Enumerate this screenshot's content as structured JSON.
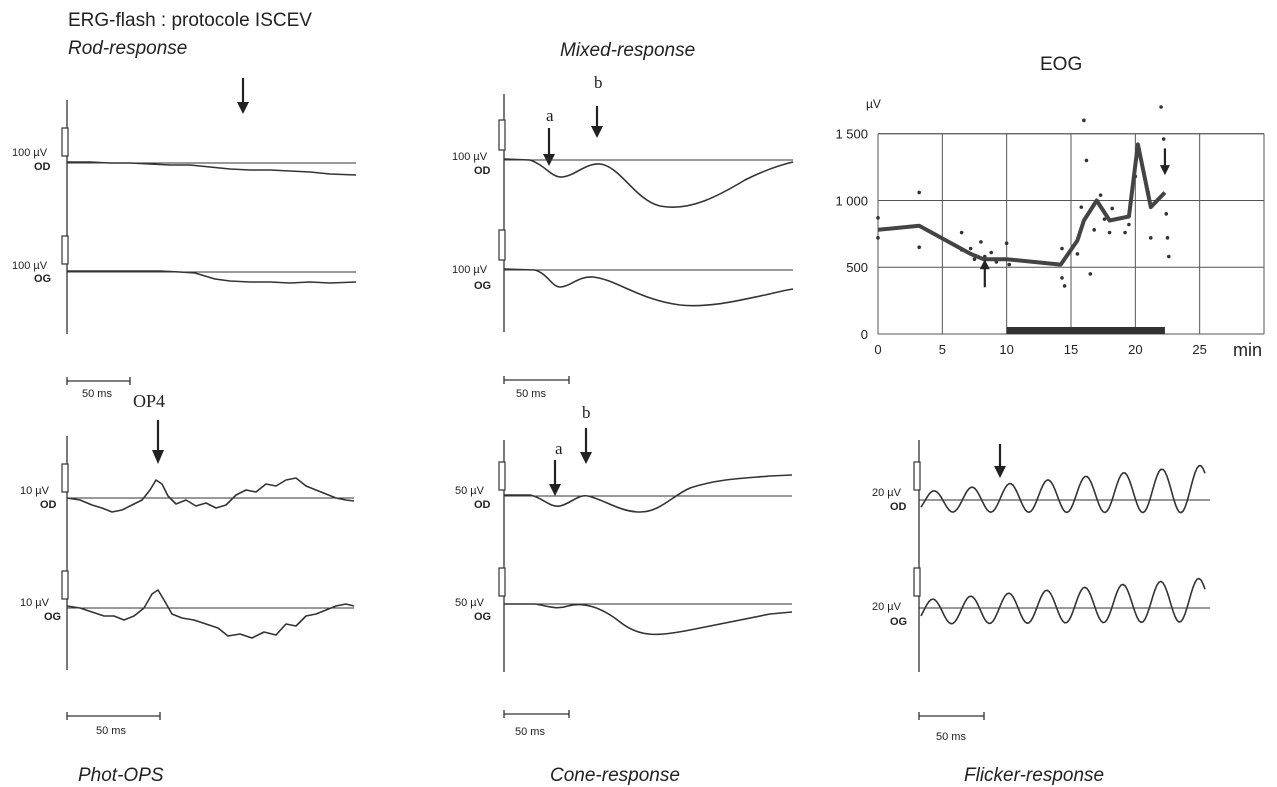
{
  "figure": {
    "header_line1": "ERG-flash : protocole ISCEV"
  },
  "panels": [
    {
      "id": "rod",
      "title": "Rod-response",
      "title_position": "top",
      "calib_od": "100 µV",
      "calib_og": "100 µV",
      "label_od": "OD",
      "label_og": "OG",
      "scale_label": "50 ms"
    },
    {
      "id": "mixed",
      "title": "Mixed-response",
      "title_position": "top",
      "calib_od": "100 µV",
      "calib_og": "100 µV",
      "label_od": "OD",
      "label_og": "OG",
      "scale_label": "50 ms",
      "marker_a": "a",
      "marker_b": "b"
    },
    {
      "id": "ops",
      "title": "Phot-OPS",
      "title_position": "bottom",
      "calib_od": "10 µV",
      "calib_og": "10 µV",
      "label_od": "OD",
      "label_og": "OG",
      "scale_label": "50 ms",
      "marker": "OP4"
    },
    {
      "id": "cone",
      "title": "Cone-response",
      "title_position": "bottom",
      "calib_od": "50 µV",
      "calib_og": "50 µV",
      "label_od": "OD",
      "label_og": "OG",
      "scale_label": "50 ms",
      "marker_a": "a",
      "marker_b": "b"
    },
    {
      "id": "flicker",
      "title": "Flicker-response",
      "title_position": "bottom",
      "calib_od": "20 µV",
      "calib_og": "20 µV",
      "label_od": "OD",
      "label_og": "OG",
      "scale_label": "50 ms"
    }
  ],
  "chart_data": {
    "type": "line",
    "title": "EOG",
    "xlabel": "min",
    "ylabel": "µV",
    "xlim": [
      0,
      30
    ],
    "ylim": [
      0,
      1500
    ],
    "x_ticks": [
      "0",
      "5",
      "10",
      "15",
      "20",
      "25"
    ],
    "y_ticks": [
      "0",
      "500",
      "1 000",
      "1 500"
    ],
    "grid": true,
    "series": [
      {
        "x": [
          0,
          3.2,
          7.2,
          8.2,
          10,
          14.2,
          15.5,
          16,
          17,
          18,
          19.5,
          20.2,
          21.2,
          22.3
        ],
        "y": [
          780,
          810,
          600,
          560,
          560,
          520,
          700,
          850,
          1000,
          850,
          880,
          1420,
          950,
          1060
        ]
      }
    ],
    "scatter": [
      {
        "x": [
          0,
          0,
          3.2,
          3.2,
          6.5,
          6.5,
          7.2,
          7.5,
          8,
          8.3,
          8.8,
          9.2,
          10,
          10.2,
          14.3,
          14.3,
          14.5,
          15.5,
          15.8,
          16,
          16.2,
          16.5,
          16.8,
          17.3,
          17.6,
          18,
          18.2,
          19.2,
          19.5,
          20,
          20.3,
          21,
          21.2,
          22,
          22.2,
          22.4,
          22.5,
          22.6
        ],
        "y": [
          870,
          720,
          1060,
          650,
          760,
          630,
          640,
          560,
          690,
          580,
          610,
          540,
          680,
          520,
          640,
          420,
          360,
          600,
          950,
          1600,
          1300,
          450,
          780,
          1040,
          860,
          760,
          940,
          760,
          820,
          1180,
          1380,
          1060,
          720,
          1700,
          1460,
          900,
          720,
          580
        ]
      }
    ],
    "markers": [
      {
        "x": 8.3,
        "direction": "up"
      },
      {
        "x": 22.3,
        "direction": "down"
      }
    ],
    "stimulus_bar": [
      10,
      22.3
    ]
  }
}
